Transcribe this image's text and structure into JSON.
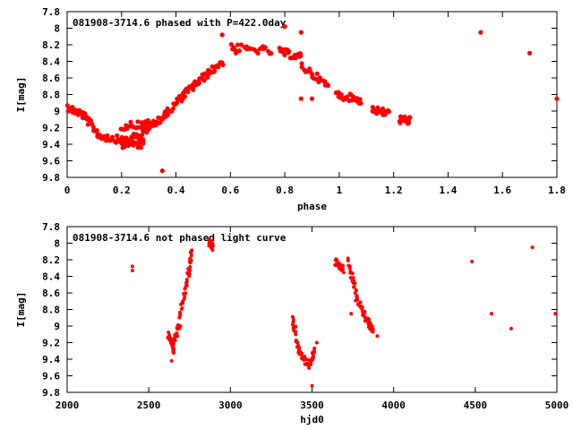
{
  "colors": {
    "points": "#ff0000",
    "axes": "#000000",
    "background": "#ffffff"
  },
  "chart_data": [
    {
      "type": "scatter",
      "title": "081908-3714.6 phased with P=422.0day",
      "xlabel": "phase",
      "ylabel": "I[mag]",
      "xlim": [
        0,
        1.8
      ],
      "ylim": [
        7.8,
        9.8
      ],
      "y_inverted": true,
      "grid": false,
      "x_ticks": [
        "0",
        "0.2",
        "0.4",
        "0.6",
        "0.8",
        "1",
        "1.2",
        "1.4",
        "1.6",
        "1.8"
      ],
      "y_ticks": [
        "7.8",
        "8",
        "8.2",
        "8.4",
        "8.6",
        "8.8",
        "9",
        "9.2",
        "9.4",
        "9.6",
        "9.8"
      ],
      "segments": [
        {
          "x": [
            0.0,
            0.06
          ],
          "y": [
            8.95,
            9.05
          ]
        },
        {
          "x": [
            0.06,
            0.12
          ],
          "y": [
            9.05,
            9.3
          ]
        },
        {
          "x": [
            0.12,
            0.2
          ],
          "y": [
            9.3,
            9.35
          ]
        },
        {
          "x": [
            0.2,
            0.28
          ],
          "y": [
            9.35,
            9.3
          ]
        },
        {
          "x": [
            0.2,
            0.28
          ],
          "y": [
            9.4,
            9.4
          ]
        },
        {
          "x": [
            0.2,
            0.3
          ],
          "y": [
            9.18,
            9.15
          ]
        },
        {
          "x": [
            0.28,
            0.36
          ],
          "y": [
            9.25,
            9.05
          ]
        },
        {
          "x": [
            0.36,
            0.43
          ],
          "y": [
            9.05,
            8.8
          ]
        },
        {
          "x": [
            0.43,
            0.5
          ],
          "y": [
            8.8,
            8.6
          ]
        },
        {
          "x": [
            0.5,
            0.57
          ],
          "y": [
            8.6,
            8.4
          ]
        },
        {
          "x": [
            0.6,
            0.75
          ],
          "y": [
            8.23,
            8.28
          ]
        },
        {
          "x": [
            0.78,
            0.86
          ],
          "y": [
            8.28,
            8.35
          ]
        },
        {
          "x": [
            0.86,
            0.96
          ],
          "y": [
            8.45,
            8.7
          ]
        },
        {
          "x": [
            0.99,
            1.08
          ],
          "y": [
            8.8,
            8.87
          ]
        },
        {
          "x": [
            1.12,
            1.18
          ],
          "y": [
            8.98,
            9.03
          ]
        },
        {
          "x": [
            1.22,
            1.26
          ],
          "y": [
            9.1,
            9.12
          ]
        }
      ],
      "points": [
        {
          "x": 0.35,
          "y": 9.72
        },
        {
          "x": 0.57,
          "y": 8.08
        },
        {
          "x": 0.72,
          "y": 8.22
        },
        {
          "x": 0.8,
          "y": 7.98
        },
        {
          "x": 0.86,
          "y": 8.05
        },
        {
          "x": 0.86,
          "y": 8.85
        },
        {
          "x": 0.9,
          "y": 8.85
        },
        {
          "x": 1.52,
          "y": 8.05
        },
        {
          "x": 1.7,
          "y": 8.3
        },
        {
          "x": 1.8,
          "y": 8.85
        },
        {
          "x": 0.62,
          "y": 8.3
        },
        {
          "x": 0.66,
          "y": 8.25
        }
      ]
    },
    {
      "type": "scatter",
      "title": "081908-3714.6 not phased light curve",
      "xlabel": "hjd0",
      "ylabel": "I[mag]",
      "xlim": [
        2000,
        5000
      ],
      "ylim": [
        7.8,
        9.8
      ],
      "y_inverted": true,
      "grid": false,
      "x_ticks": [
        "2000",
        "2500",
        "3000",
        "3500",
        "4000",
        "4500",
        "5000"
      ],
      "y_ticks": [
        "7.8",
        "8",
        "8.2",
        "8.4",
        "8.6",
        "8.8",
        "9",
        "9.2",
        "9.4",
        "9.6",
        "9.8"
      ],
      "segments": [
        {
          "x": [
            2620,
            2660
          ],
          "y": [
            9.1,
            9.3
          ]
        },
        {
          "x": [
            2650,
            2690
          ],
          "y": [
            9.2,
            9.0
          ]
        },
        {
          "x": [
            2690,
            2740
          ],
          "y": [
            8.9,
            8.4
          ]
        },
        {
          "x": [
            2740,
            2765
          ],
          "y": [
            8.4,
            8.1
          ]
        },
        {
          "x": [
            2870,
            2890
          ],
          "y": [
            7.98,
            8.05
          ]
        },
        {
          "x": [
            3380,
            3420
          ],
          "y": [
            8.88,
            9.3
          ]
        },
        {
          "x": [
            3420,
            3480
          ],
          "y": [
            9.3,
            9.48
          ]
        },
        {
          "x": [
            3480,
            3520
          ],
          "y": [
            9.48,
            9.3
          ]
        },
        {
          "x": [
            3640,
            3690
          ],
          "y": [
            8.22,
            8.32
          ]
        },
        {
          "x": [
            3720,
            3770
          ],
          "y": [
            8.22,
            8.6
          ]
        },
        {
          "x": [
            3770,
            3830
          ],
          "y": [
            8.65,
            8.9
          ]
        },
        {
          "x": [
            3840,
            3870
          ],
          "y": [
            8.95,
            9.05
          ]
        }
      ],
      "points": [
        {
          "x": 2400,
          "y": 8.28
        },
        {
          "x": 2400,
          "y": 8.33
        },
        {
          "x": 2640,
          "y": 9.42
        },
        {
          "x": 3500,
          "y": 9.72
        },
        {
          "x": 3530,
          "y": 9.2
        },
        {
          "x": 3740,
          "y": 8.85
        },
        {
          "x": 3900,
          "y": 9.12
        },
        {
          "x": 4480,
          "y": 8.22
        },
        {
          "x": 4600,
          "y": 8.85
        },
        {
          "x": 4720,
          "y": 9.03
        },
        {
          "x": 4850,
          "y": 8.05
        },
        {
          "x": 4990,
          "y": 8.85
        }
      ]
    }
  ]
}
